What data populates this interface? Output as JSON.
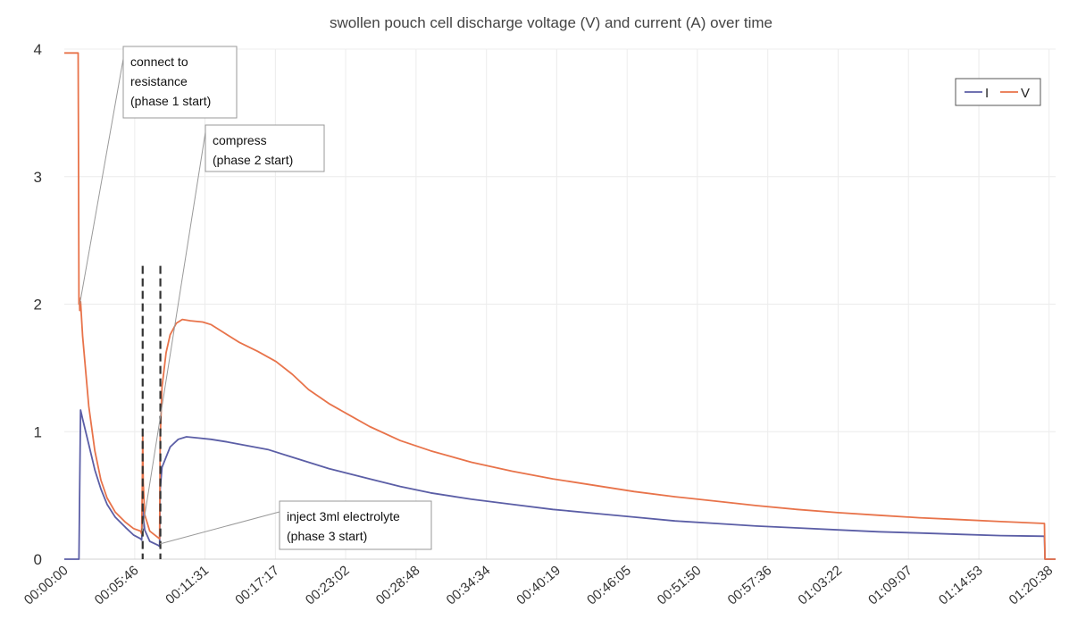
{
  "chart_data": {
    "type": "line",
    "title": "swollen pouch cell discharge voltage (V) and current (A) over time",
    "xlabel": "",
    "ylabel": "",
    "ylim": [
      0,
      4
    ],
    "yticks": [
      "0",
      "1",
      "2",
      "3",
      "4"
    ],
    "x_unit": "seconds",
    "xlim_seconds": [
      0,
      4870
    ],
    "xtick_labels": [
      "00:00:00",
      "00:05:46",
      "00:11:31",
      "00:17:17",
      "00:23:02",
      "00:28:48",
      "00:34:34",
      "00:40:19",
      "00:46:05",
      "00:51:50",
      "00:57:36",
      "01:03:22",
      "01:09:07",
      "01:14:53",
      "01:20:38"
    ],
    "xtick_seconds": [
      0,
      346,
      691,
      1037,
      1382,
      1728,
      2074,
      2419,
      2765,
      3110,
      3456,
      3802,
      4147,
      4493,
      4838
    ],
    "grid": true,
    "legend_position": "top-right",
    "series": [
      {
        "name": "I",
        "color": "#5b5ea6",
        "points": [
          [
            0,
            0
          ],
          [
            72,
            0
          ],
          [
            76,
            0.6
          ],
          [
            80,
            1.17
          ],
          [
            90,
            1.1
          ],
          [
            120,
            0.9
          ],
          [
            150,
            0.7
          ],
          [
            180,
            0.55
          ],
          [
            210,
            0.43
          ],
          [
            250,
            0.33
          ],
          [
            300,
            0.25
          ],
          [
            340,
            0.19
          ],
          [
            375,
            0.16
          ],
          [
            380,
            0.15
          ],
          [
            383,
            0.22
          ],
          [
            385,
            0.42
          ],
          [
            388,
            0.35
          ],
          [
            395,
            0.23
          ],
          [
            420,
            0.14
          ],
          [
            460,
            0.11
          ],
          [
            468,
            0.1
          ],
          [
            471,
            0.55
          ],
          [
            480,
            0.72
          ],
          [
            520,
            0.88
          ],
          [
            560,
            0.94
          ],
          [
            600,
            0.96
          ],
          [
            660,
            0.95
          ],
          [
            720,
            0.94
          ],
          [
            800,
            0.92
          ],
          [
            900,
            0.89
          ],
          [
            1000,
            0.86
          ],
          [
            1100,
            0.81
          ],
          [
            1200,
            0.76
          ],
          [
            1300,
            0.71
          ],
          [
            1400,
            0.67
          ],
          [
            1500,
            0.63
          ],
          [
            1650,
            0.57
          ],
          [
            1800,
            0.52
          ],
          [
            2000,
            0.47
          ],
          [
            2200,
            0.43
          ],
          [
            2400,
            0.39
          ],
          [
            2600,
            0.36
          ],
          [
            2800,
            0.33
          ],
          [
            3000,
            0.3
          ],
          [
            3200,
            0.28
          ],
          [
            3400,
            0.26
          ],
          [
            3600,
            0.245
          ],
          [
            3800,
            0.23
          ],
          [
            4000,
            0.215
          ],
          [
            4200,
            0.205
          ],
          [
            4400,
            0.195
          ],
          [
            4600,
            0.185
          ],
          [
            4815,
            0.18
          ],
          [
            4818,
            0
          ],
          [
            4870,
            0
          ]
        ]
      },
      {
        "name": "V",
        "color": "#e8734a",
        "points": [
          [
            0,
            3.97
          ],
          [
            68,
            3.97
          ],
          [
            70,
            3.0
          ],
          [
            72,
            2.0
          ],
          [
            74,
            2.05
          ],
          [
            76,
            1.95
          ],
          [
            80,
            2.02
          ],
          [
            90,
            1.75
          ],
          [
            120,
            1.2
          ],
          [
            150,
            0.85
          ],
          [
            180,
            0.62
          ],
          [
            210,
            0.48
          ],
          [
            250,
            0.37
          ],
          [
            300,
            0.29
          ],
          [
            340,
            0.24
          ],
          [
            375,
            0.22
          ],
          [
            380,
            0.2
          ],
          [
            383,
            0.55
          ],
          [
            385,
            0.97
          ],
          [
            388,
            0.6
          ],
          [
            395,
            0.35
          ],
          [
            420,
            0.22
          ],
          [
            460,
            0.17
          ],
          [
            468,
            0.16
          ],
          [
            471,
            0.95
          ],
          [
            480,
            1.35
          ],
          [
            500,
            1.62
          ],
          [
            520,
            1.76
          ],
          [
            550,
            1.85
          ],
          [
            580,
            1.88
          ],
          [
            620,
            1.87
          ],
          [
            680,
            1.86
          ],
          [
            720,
            1.84
          ],
          [
            780,
            1.78
          ],
          [
            860,
            1.7
          ],
          [
            950,
            1.63
          ],
          [
            1040,
            1.55
          ],
          [
            1120,
            1.45
          ],
          [
            1200,
            1.33
          ],
          [
            1300,
            1.22
          ],
          [
            1400,
            1.13
          ],
          [
            1500,
            1.04
          ],
          [
            1650,
            0.93
          ],
          [
            1800,
            0.85
          ],
          [
            2000,
            0.76
          ],
          [
            2200,
            0.69
          ],
          [
            2400,
            0.63
          ],
          [
            2600,
            0.58
          ],
          [
            2800,
            0.53
          ],
          [
            3000,
            0.49
          ],
          [
            3200,
            0.455
          ],
          [
            3400,
            0.42
          ],
          [
            3600,
            0.39
          ],
          [
            3800,
            0.365
          ],
          [
            4000,
            0.345
          ],
          [
            4200,
            0.325
          ],
          [
            4400,
            0.31
          ],
          [
            4600,
            0.295
          ],
          [
            4815,
            0.28
          ],
          [
            4818,
            0
          ],
          [
            4870,
            0
          ]
        ]
      }
    ],
    "markers": [
      {
        "name": "phase-2-marker",
        "x": 385,
        "y_range": [
          0,
          2.3
        ]
      },
      {
        "name": "phase-3-marker",
        "x": 472,
        "y_range": [
          0,
          2.3
        ]
      }
    ],
    "annotations": [
      {
        "name": "annotation-phase-1",
        "lines": [
          "connect to",
          "resistance",
          "(phase 1 start)"
        ],
        "target": [
          76,
          2.0
        ]
      },
      {
        "name": "annotation-phase-2",
        "lines": [
          "compress",
          "(phase 2 start)"
        ],
        "target": [
          383,
          0.22
        ]
      },
      {
        "name": "annotation-phase-3",
        "lines": [
          "inject 3ml electrolyte",
          "(phase 3 start)"
        ],
        "target": [
          470,
          0.12
        ]
      }
    ]
  }
}
